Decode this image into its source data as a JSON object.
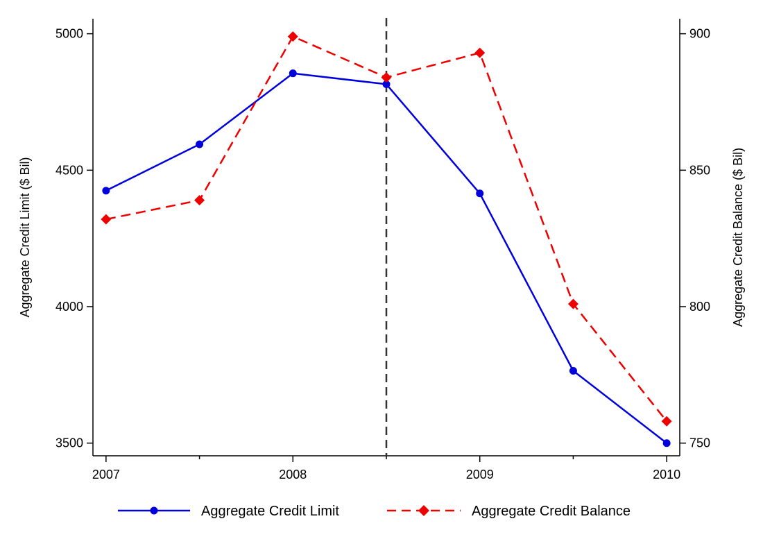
{
  "chart_data": {
    "type": "line",
    "x": [
      2007,
      2007.5,
      2008,
      2008.5,
      2009,
      2009.5,
      2010
    ],
    "x_ticks": [
      2007,
      2008,
      2009,
      2010
    ],
    "x_tick_labels": [
      "2007",
      "2008",
      "2009",
      "2010"
    ],
    "xlim": [
      2006.93,
      2010.07
    ],
    "vline_x": 2008.5,
    "series": [
      {
        "name": "Aggregate Credit Limit",
        "axis": "left",
        "values": [
          4425,
          4595,
          4855,
          4815,
          4415,
          3765,
          3500
        ],
        "color": "#0000dd",
        "line_style": "solid",
        "marker": "circle"
      },
      {
        "name": "Aggregate Credit Balance",
        "axis": "right",
        "values": [
          832,
          839,
          899,
          884,
          893,
          801,
          758
        ],
        "color": "#ee0000",
        "line_style": "dashed",
        "marker": "diamond"
      }
    ],
    "y_left": {
      "label": "Aggregate Credit Limit ($ Bil)",
      "ticks": [
        3500,
        4000,
        4500,
        5000
      ],
      "tick_labels": [
        "3500",
        "4000",
        "4500",
        "5000"
      ],
      "ylim": [
        3453.5,
        5055
      ]
    },
    "y_right": {
      "label": "Aggregate Credit Balance ($ Bil)",
      "ticks": [
        750,
        800,
        850,
        900
      ],
      "tick_labels": [
        "750",
        "800",
        "850",
        "900"
      ],
      "ylim": [
        745.35,
        905.5
      ]
    },
    "grid": false,
    "legend_position": "bottom"
  }
}
